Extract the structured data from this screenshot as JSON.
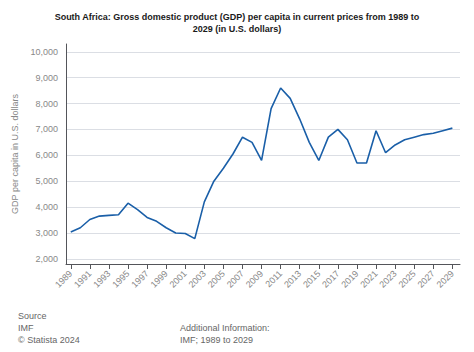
{
  "chart_data": {
    "type": "line",
    "title": "South Africa: Gross domestic product (GDP) per capita in current prices from 1989 to\n2029 (in U.S. dollars)",
    "ylabel": "GDP per capita in U.S. dollars",
    "annotations": [
      "Source\nIMF\n© Statista 2024",
      "Additional Information:\nIMF; 1989 to 2029"
    ],
    "color": "#1a5fa8",
    "grid": true,
    "x": [
      1989,
      1990,
      1991,
      1992,
      1993,
      1994,
      1995,
      1996,
      1997,
      1998,
      1999,
      2000,
      2001,
      2002,
      2003,
      2004,
      2005,
      2006,
      2007,
      2008,
      2009,
      2010,
      2011,
      2012,
      2013,
      2014,
      2015,
      2016,
      2017,
      2018,
      2019,
      2020,
      2021,
      2022,
      2023,
      2024,
      2025,
      2026,
      2027,
      2028,
      2029
    ],
    "values": [
      3040,
      3200,
      3520,
      3650,
      3680,
      3700,
      4150,
      3900,
      3600,
      3450,
      3200,
      3000,
      2980,
      2780,
      4200,
      5000,
      5500,
      6050,
      6700,
      6500,
      5800,
      7800,
      8600,
      8200,
      7400,
      6500,
      5800,
      6700,
      7000,
      6600,
      5700,
      5700,
      6950,
      6100,
      6400,
      6600,
      6700,
      6800,
      6850,
      6950,
      7050
    ],
    "xlim": [
      1988.5,
      2029.8
    ],
    "xticks": [
      1989,
      1991,
      1993,
      1995,
      1997,
      1999,
      2001,
      2003,
      2005,
      2007,
      2009,
      2011,
      2013,
      2015,
      2017,
      2019,
      2021,
      2023,
      2025,
      2027,
      2029
    ],
    "ylim": [
      1800,
      10300
    ],
    "yticks": [
      {
        "value": 2000,
        "label": "2,000"
      },
      {
        "value": 3000,
        "label": "3,000"
      },
      {
        "value": 4000,
        "label": "4,000"
      },
      {
        "value": 5000,
        "label": "5,000"
      },
      {
        "value": 6000,
        "label": "6,000"
      },
      {
        "value": 7000,
        "label": "7,000"
      },
      {
        "value": 8000,
        "label": "8,000"
      },
      {
        "value": 9000,
        "label": "9,000"
      },
      {
        "value": 10000,
        "label": "10,000"
      }
    ]
  }
}
